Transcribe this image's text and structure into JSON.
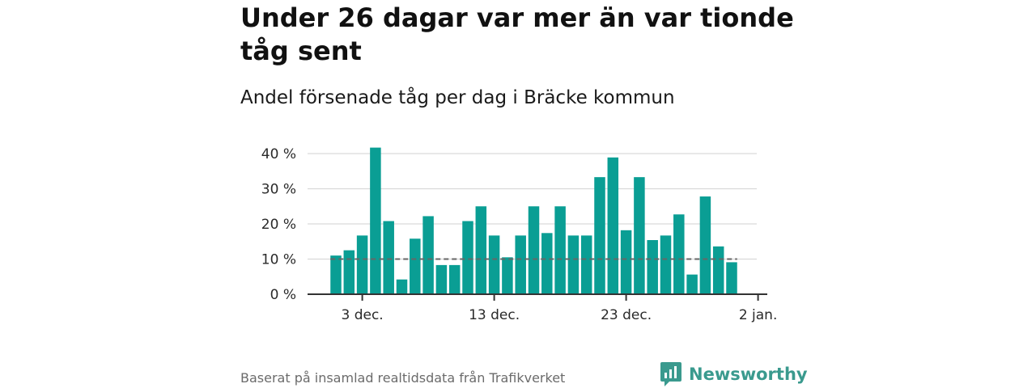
{
  "header": {
    "title": "Under 26 dagar var mer än var tionde tåg sent",
    "subtitle": "Andel försenade tåg per dag i Bräcke kommun"
  },
  "footer": {
    "source": "Baserat på insamlad realtidsdata från Trafikverket",
    "brand": "Newsworthy"
  },
  "colors": {
    "bar": "#0a9e94",
    "reference_line": "#666666",
    "grid": "#d9d9d9",
    "axis": "#333333",
    "brand": "#3a9a8e"
  },
  "chart_data": {
    "type": "bar",
    "x_start": "1 dec.",
    "categories": [
      "1 dec.",
      "2 dec.",
      "3 dec.",
      "4 dec.",
      "5 dec.",
      "6 dec.",
      "7 dec.",
      "8 dec.",
      "9 dec.",
      "10 dec.",
      "11 dec.",
      "12 dec.",
      "13 dec.",
      "14 dec.",
      "15 dec.",
      "16 dec.",
      "17 dec.",
      "18 dec.",
      "19 dec.",
      "20 dec.",
      "21 dec.",
      "22 dec.",
      "23 dec.",
      "24 dec.",
      "25 dec.",
      "26 dec.",
      "27 dec.",
      "28 dec.",
      "29 dec.",
      "30 dec.",
      "31 dec."
    ],
    "values": [
      11,
      12.5,
      16.7,
      41.7,
      20.8,
      4.2,
      15.8,
      22.2,
      8.3,
      8.3,
      20.8,
      25,
      16.7,
      10.5,
      16.7,
      25,
      17.4,
      25,
      16.7,
      16.7,
      33.3,
      38.9,
      18.2,
      33.3,
      15.4,
      16.7,
      22.7,
      5.6,
      27.8,
      13.6,
      9.1
    ],
    "reference_value": 10,
    "ylim": [
      0,
      40
    ],
    "yticks": [
      0,
      10,
      20,
      30,
      40
    ],
    "ytick_labels": [
      "0 %",
      "10 %",
      "20 %",
      "30 %",
      "40 %"
    ],
    "xtick_labels": [
      {
        "label": "3 dec.",
        "index": 2
      },
      {
        "label": "13 dec.",
        "index": 12
      },
      {
        "label": "23 dec.",
        "index": 22
      },
      {
        "label": "2 jan.",
        "index": 32
      }
    ],
    "xlabel": "",
    "ylabel": "",
    "grid": true,
    "legend": "none"
  }
}
